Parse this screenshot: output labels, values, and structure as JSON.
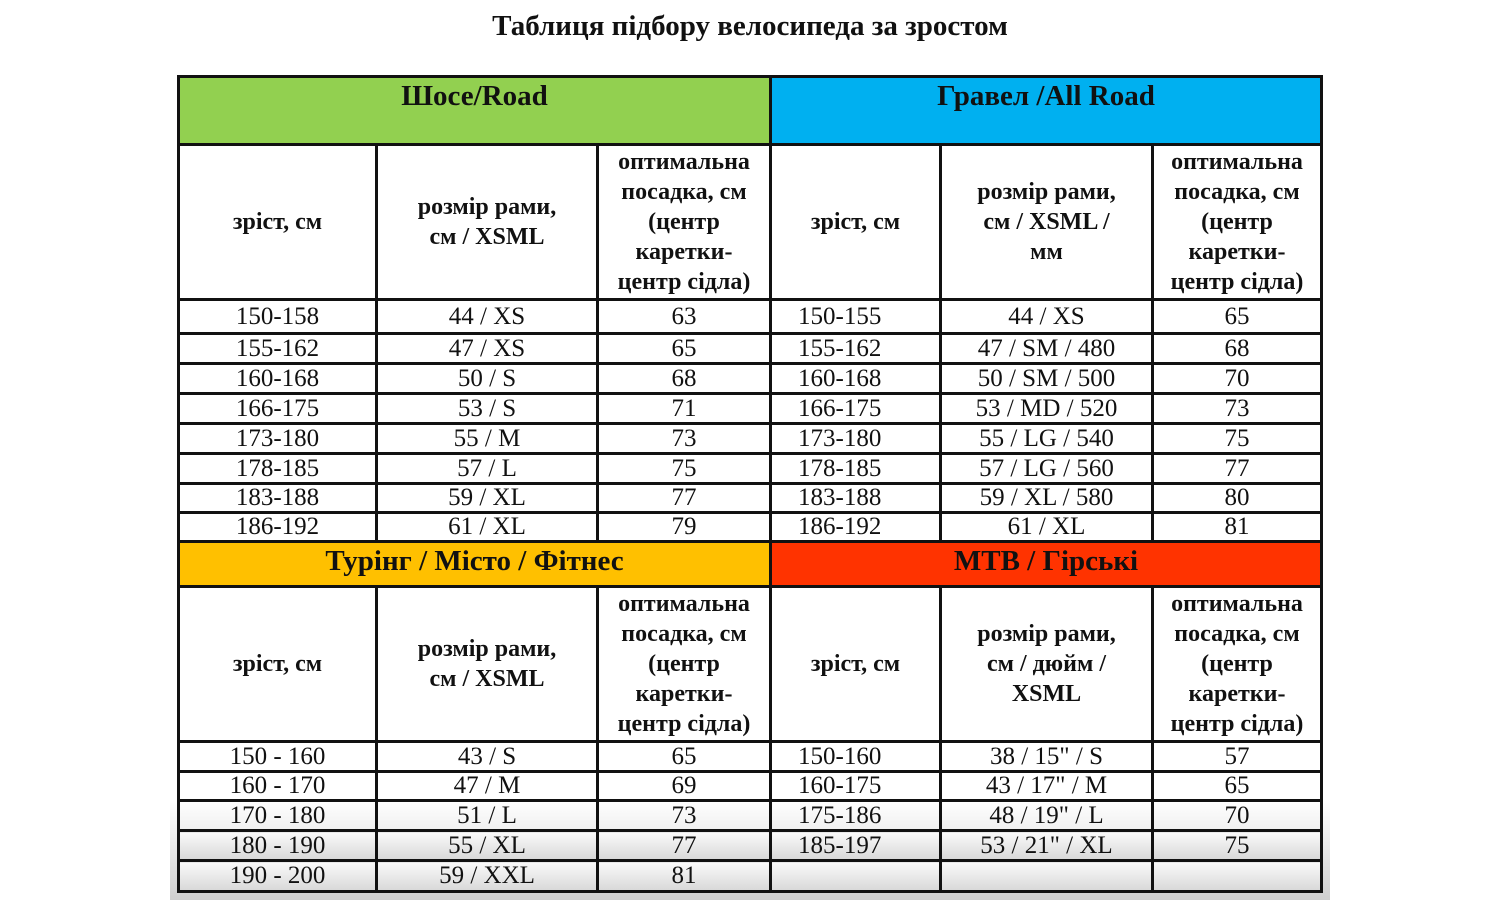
{
  "title": "Таблиця підбору велосипеда за зростом",
  "colors": {
    "road": "#92d050",
    "gravel": "#00b0f0",
    "touring": "#ffc000",
    "mtb": "#ff3300"
  },
  "top": {
    "left": {
      "title": "Шосе/Road",
      "headers": [
        "зріст, см",
        "розмір рами,\nсм / XSML",
        "оптимальна\nпосадка, см\n(центр\nкаретки-\nцентр сідла)"
      ]
    },
    "right": {
      "title": "Гравел /All Road",
      "headers": [
        "зріст, см",
        "розмір рами,\nсм / XSML /\nмм",
        "оптимальна\nпосадка, см\n(центр\nкаретки-\nцентр сідла)"
      ]
    },
    "rows": [
      [
        "150-158",
        "44 / XS",
        "63",
        "150-155",
        "44 / XS",
        "65"
      ],
      [
        "155-162",
        "47 / XS",
        "65",
        "155-162",
        "47 / SM / 480",
        "68"
      ],
      [
        "160-168",
        "50 / S",
        "68",
        "160-168",
        "50 / SM / 500",
        "70"
      ],
      [
        "166-175",
        "53 / S",
        "71",
        "166-175",
        "53 / MD / 520",
        "73"
      ],
      [
        "173-180",
        "55 / M",
        "73",
        "173-180",
        "55 / LG / 540",
        "75"
      ],
      [
        "178-185",
        "57 / L",
        "75",
        "178-185",
        "57 / LG / 560",
        "77"
      ],
      [
        "183-188",
        "59 / XL",
        "77",
        "183-188",
        "59 / XL / 580",
        "80"
      ],
      [
        "186-192",
        "61 / XL",
        "79",
        "186-192",
        "61 / XL",
        "81"
      ]
    ]
  },
  "bottom": {
    "left": {
      "title": "Турінг / Місто / Фітнес",
      "headers": [
        "зріст, см",
        "розмір рами,\nсм / XSML",
        "оптимальна\nпосадка, см\n(центр\nкаретки-\nцентр сідла)"
      ]
    },
    "right": {
      "title": "МТВ / Гірські",
      "headers": [
        "зріст, см",
        "розмір рами,\nсм / дюйм /\nXSML",
        "оптимальна\nпосадка, см\n(центр\nкаретки-\nцентр сідла)"
      ]
    },
    "rows": [
      [
        "150 - 160",
        "43 / S",
        "65",
        "150-160",
        "38 / 15\" / S",
        "57"
      ],
      [
        "160 - 170",
        "47 / M",
        "69",
        "160-175",
        "43 / 17\" / M",
        "65"
      ],
      [
        "170 - 180",
        "51 / L",
        "73",
        "175-186",
        "48 / 19\" / L",
        "70"
      ],
      [
        "180 - 190",
        "55 / XL",
        "77",
        "185-197",
        "53 / 21\" / XL",
        "75"
      ],
      [
        "190 - 200",
        "59 / XXL",
        "81",
        "",
        "",
        ""
      ]
    ]
  }
}
